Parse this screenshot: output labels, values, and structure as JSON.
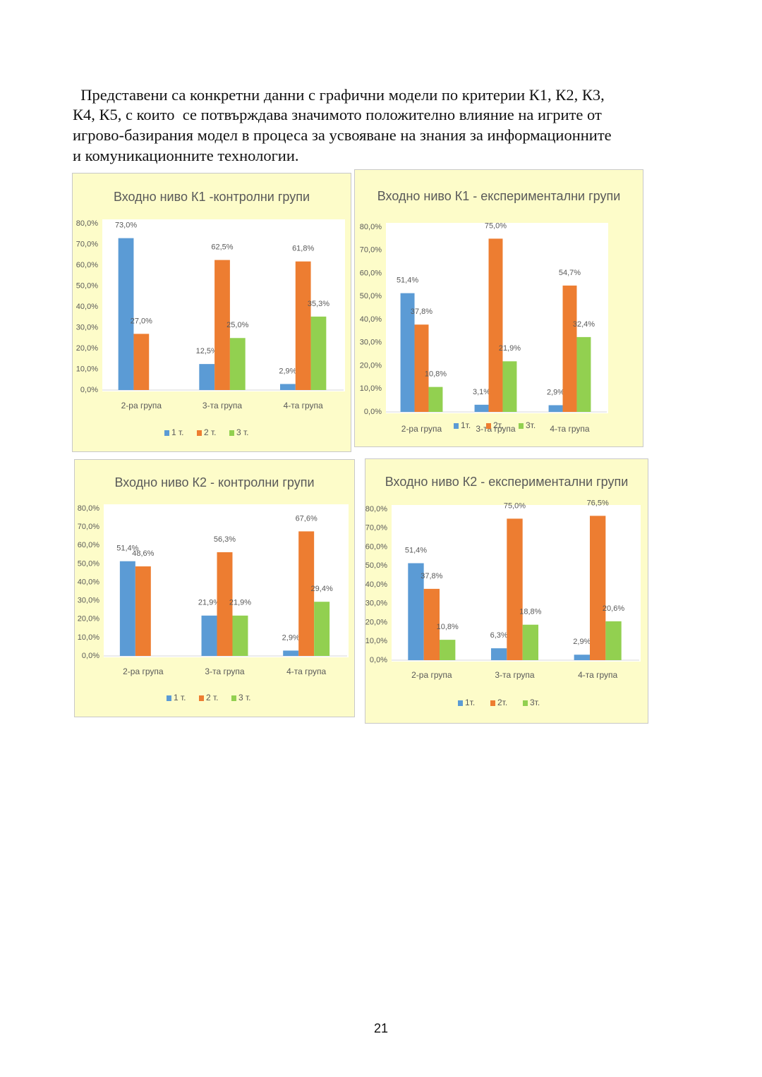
{
  "paragraph": [
    "  Представени са конкретни данни с графични модели по критерии К1, К2, К3,",
    "К4, К5, с които  се потвърждава значимото положително влияние на игрите от",
    "игрово-базирания модел в процеса за усвояване на знания за информационните",
    "и комуникационните технологии."
  ],
  "chart_data": [
    {
      "type": "bar",
      "title": "Входно ниво К1 -контролни групи",
      "categories": [
        "2-ра група",
        "3-та група",
        "4-та група"
      ],
      "series": [
        {
          "name": "1 т.",
          "color": "#5b9bd5",
          "values": [
            73.0,
            12.5,
            2.9
          ],
          "value_labels": [
            "73,0%",
            "12,5%",
            "2,9%"
          ]
        },
        {
          "name": "2 т.",
          "color": "#ed7d31",
          "values": [
            27.0,
            62.5,
            61.8
          ],
          "value_labels": [
            "27,0%",
            "62,5%",
            "61,8%"
          ]
        },
        {
          "name": "3 т.",
          "color": "#92d050",
          "values": [
            null,
            25.0,
            35.3
          ],
          "value_labels": [
            null,
            "25,0%",
            "35,3%"
          ]
        }
      ],
      "ylim": [
        0,
        80
      ],
      "yticks": [
        {
          "value": 0,
          "label": "0,0%"
        },
        {
          "value": 10,
          "label": "10,0%"
        },
        {
          "value": 20,
          "label": "20,0%"
        },
        {
          "value": 30,
          "label": "30,0%"
        },
        {
          "value": 40,
          "label": "40,0%"
        },
        {
          "value": 50,
          "label": "50,0%"
        },
        {
          "value": 60,
          "label": "60,0%"
        },
        {
          "value": 70,
          "label": "70,0%"
        },
        {
          "value": 80,
          "label": "80,0%"
        }
      ],
      "grid": false,
      "legend": "bottom"
    },
    {
      "type": "bar",
      "title": "Входно ниво К1 - експериментални групи",
      "categories": [
        "2-ра група",
        "3-та група",
        "4-та група"
      ],
      "series": [
        {
          "name": "1т.",
          "color": "#5b9bd5",
          "values": [
            51.4,
            3.1,
            2.9
          ],
          "value_labels": [
            "51,4%",
            "3,1%",
            "2,9%"
          ]
        },
        {
          "name": "2т.",
          "color": "#ed7d31",
          "values": [
            37.8,
            75.0,
            54.7
          ],
          "value_labels": [
            "37,8%",
            "75,0%",
            "54,7%"
          ]
        },
        {
          "name": "3т.",
          "color": "#92d050",
          "values": [
            10.8,
            21.9,
            32.4
          ],
          "value_labels": [
            "10,8%",
            "21,9%",
            "32,4%"
          ]
        }
      ],
      "ylim": [
        0,
        80
      ],
      "yticks": [
        {
          "value": 0,
          "label": "0,0%"
        },
        {
          "value": 10,
          "label": "10,0%"
        },
        {
          "value": 20,
          "label": "20,0%"
        },
        {
          "value": 30,
          "label": "30,0%"
        },
        {
          "value": 40,
          "label": "40,0%"
        },
        {
          "value": 50,
          "label": "50,0%"
        },
        {
          "value": 60,
          "label": "60,0%"
        },
        {
          "value": 70,
          "label": "70,0%"
        },
        {
          "value": 80,
          "label": "80,0%"
        }
      ],
      "grid": false,
      "legend": "bottom"
    },
    {
      "type": "bar",
      "title": "Входно ниво  К2 - контролни групи",
      "categories": [
        "2-ра група",
        "3-та група",
        "4-та група"
      ],
      "series": [
        {
          "name": "1 т.",
          "color": "#5b9bd5",
          "values": [
            51.4,
            21.9,
            2.9
          ],
          "value_labels": [
            "51,4%",
            "21,9%",
            "2,9%"
          ]
        },
        {
          "name": "2 т.",
          "color": "#ed7d31",
          "values": [
            48.6,
            56.3,
            67.6
          ],
          "value_labels": [
            "48,6%",
            "56,3%",
            "67,6%"
          ]
        },
        {
          "name": "3 т.",
          "color": "#92d050",
          "values": [
            null,
            21.9,
            29.4
          ],
          "value_labels": [
            null,
            "21,9%",
            "29,4%"
          ]
        }
      ],
      "ylim": [
        0,
        80
      ],
      "yticks": [
        {
          "value": 0,
          "label": "0,0%"
        },
        {
          "value": 10,
          "label": "10,0%"
        },
        {
          "value": 20,
          "label": "20,0%"
        },
        {
          "value": 30,
          "label": "30,0%"
        },
        {
          "value": 40,
          "label": "40,0%"
        },
        {
          "value": 50,
          "label": "50,0%"
        },
        {
          "value": 60,
          "label": "60,0%"
        },
        {
          "value": 70,
          "label": "70,0%"
        },
        {
          "value": 80,
          "label": "80,0%"
        }
      ],
      "grid": false,
      "legend": "bottom"
    },
    {
      "type": "bar",
      "title": "Входно ниво К2 - експериментални групи",
      "categories": [
        "2-ра група",
        "3-та група",
        "4-та група"
      ],
      "series": [
        {
          "name": "1т.",
          "color": "#5b9bd5",
          "values": [
            51.4,
            6.3,
            2.9
          ],
          "value_labels": [
            "51,4%",
            "6,3%",
            "2,9%"
          ]
        },
        {
          "name": "2т.",
          "color": "#ed7d31",
          "values": [
            37.8,
            75.0,
            76.5
          ],
          "value_labels": [
            "37,8%",
            "75,0%",
            "76,5%"
          ]
        },
        {
          "name": "3т.",
          "color": "#92d050",
          "values": [
            10.8,
            18.8,
            20.6
          ],
          "value_labels": [
            "10,8%",
            "18,8%",
            "20,6%"
          ]
        }
      ],
      "ylim": [
        0,
        80
      ],
      "yticks": [
        {
          "value": 0,
          "label": "0,0%"
        },
        {
          "value": 10,
          "label": "10,0%"
        },
        {
          "value": 20,
          "label": "20,0%"
        },
        {
          "value": 30,
          "label": "30,0%"
        },
        {
          "value": 40,
          "label": "40,0%"
        },
        {
          "value": 50,
          "label": "50,0%"
        },
        {
          "value": 60,
          "label": "60,0%"
        },
        {
          "value": 70,
          "label": "70,0%"
        },
        {
          "value": 80,
          "label": "80,0%"
        }
      ],
      "grid": false,
      "legend": "bottom"
    }
  ],
  "page_number": "21"
}
